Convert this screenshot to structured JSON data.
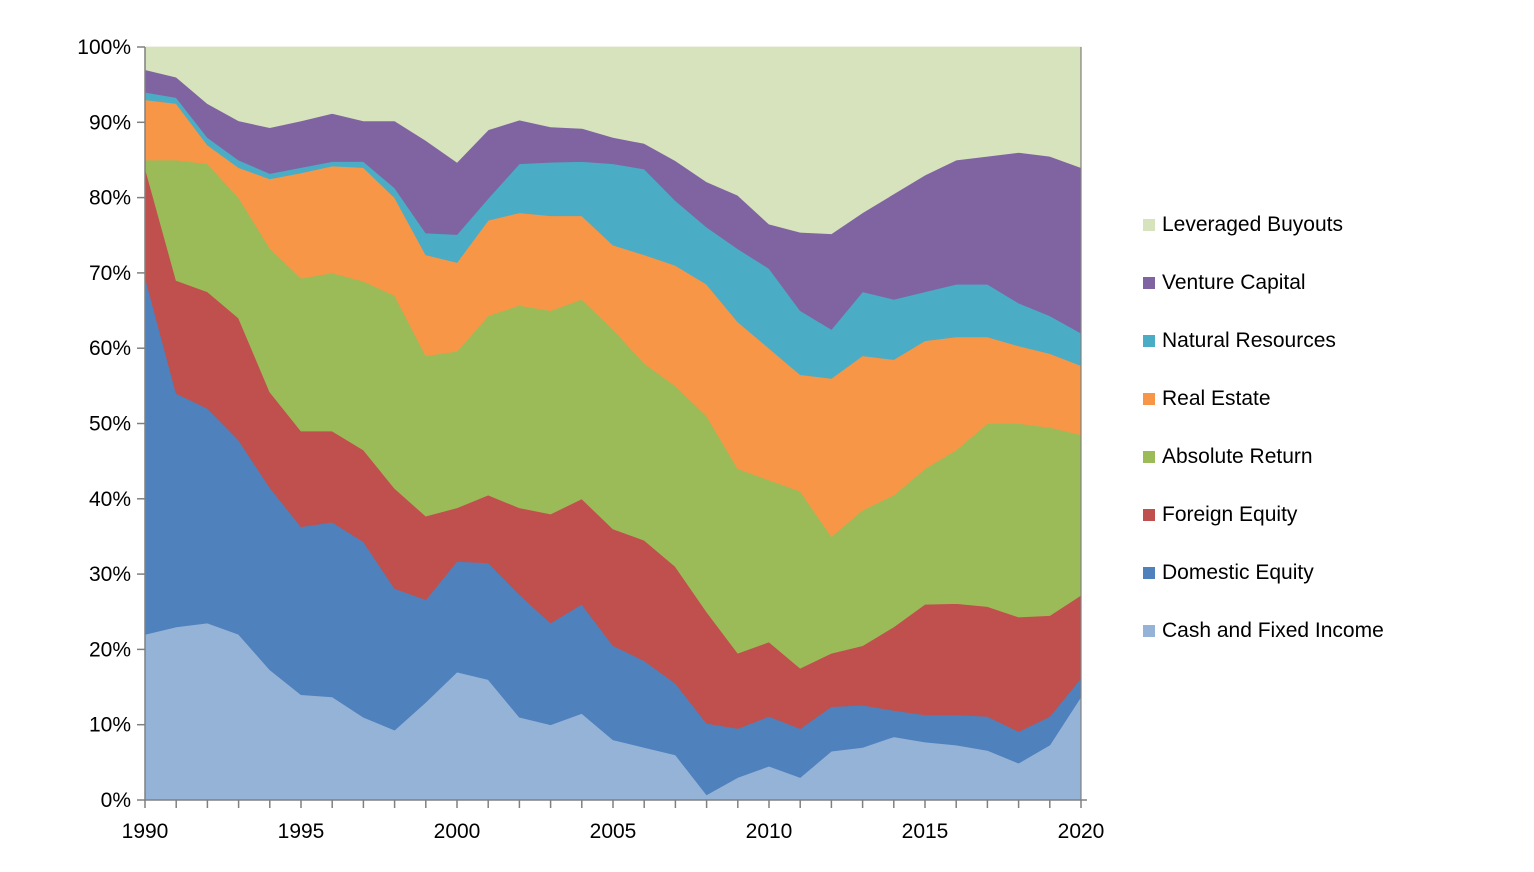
{
  "chart_data": {
    "type": "area",
    "stacked": true,
    "percent_of_total": true,
    "title": "",
    "xlabel": "",
    "ylabel": "",
    "x": [
      1990,
      1991,
      1992,
      1993,
      1994,
      1995,
      1996,
      1997,
      1998,
      1999,
      2000,
      2001,
      2002,
      2003,
      2004,
      2005,
      2006,
      2007,
      2008,
      2009,
      2010,
      2011,
      2012,
      2013,
      2014,
      2015,
      2016,
      2017,
      2018,
      2019,
      2020
    ],
    "series": [
      {
        "name": "Cash and Fixed Income",
        "color": "#95B3D7",
        "values": [
          22.0,
          23.0,
          23.5,
          22.0,
          17.3,
          14.0,
          13.7,
          11.0,
          9.3,
          13.0,
          17.0,
          16.0,
          11.0,
          10.0,
          11.5,
          8.0,
          7.0,
          6.0,
          0.7,
          3.0,
          4.5,
          3.0,
          6.5,
          7.0,
          8.4,
          7.7,
          7.3,
          6.6,
          4.9,
          7.3,
          13.7
        ]
      },
      {
        "name": "Domestic Equity",
        "color": "#4F81BD",
        "values": [
          47.5,
          31.0,
          28.5,
          25.8,
          24.2,
          22.3,
          23.2,
          23.3,
          18.8,
          13.6,
          14.7,
          15.5,
          16.3,
          13.5,
          14.5,
          12.5,
          11.5,
          9.5,
          9.5,
          6.5,
          6.6,
          6.5,
          5.9,
          5.6,
          3.5,
          3.6,
          4.0,
          4.5,
          4.2,
          3.8,
          2.5
        ]
      },
      {
        "name": "Foreign Equity",
        "color": "#C0504D",
        "values": [
          14.5,
          15.0,
          15.5,
          16.2,
          12.7,
          12.7,
          12.1,
          12.2,
          13.3,
          11.1,
          7.1,
          9.0,
          11.5,
          14.5,
          14.0,
          15.5,
          16.0,
          15.5,
          14.8,
          10.0,
          9.9,
          8.0,
          7.1,
          7.9,
          11.1,
          14.7,
          14.8,
          14.6,
          15.2,
          13.4,
          11.0
        ]
      },
      {
        "name": "Absolute Return",
        "color": "#9BBB59",
        "values": [
          1.0,
          16.0,
          17.0,
          16.0,
          19.1,
          20.3,
          21.0,
          22.4,
          25.6,
          21.3,
          20.8,
          23.8,
          26.9,
          27.0,
          26.5,
          26.5,
          23.5,
          24.0,
          26.0,
          24.5,
          21.5,
          23.5,
          15.5,
          18.0,
          17.5,
          18.0,
          20.4,
          24.3,
          25.7,
          25.0,
          21.3
        ]
      },
      {
        "name": "Real Estate",
        "color": "#F79646",
        "values": [
          8.0,
          7.5,
          2.5,
          4.0,
          9.2,
          14.0,
          14.2,
          15.1,
          13.0,
          13.4,
          11.8,
          12.7,
          12.3,
          12.6,
          11.1,
          11.2,
          14.4,
          16.0,
          17.5,
          19.5,
          17.5,
          15.5,
          21.0,
          20.5,
          18.0,
          17.0,
          15.0,
          11.5,
          10.3,
          9.8,
          9.2
        ]
      },
      {
        "name": "Natural Resources",
        "color": "#4BACC6",
        "values": [
          1.0,
          0.8,
          1.0,
          1.0,
          0.7,
          0.7,
          0.6,
          0.8,
          1.3,
          2.9,
          3.7,
          2.9,
          6.5,
          7.1,
          7.2,
          10.8,
          11.4,
          8.6,
          7.6,
          9.7,
          10.6,
          8.5,
          6.5,
          8.5,
          8.0,
          6.5,
          7.0,
          7.0,
          5.7,
          5.0,
          4.3
        ]
      },
      {
        "name": "Venture Capital",
        "color": "#8064A2",
        "values": [
          3.0,
          2.7,
          4.5,
          5.2,
          6.1,
          6.2,
          6.4,
          5.4,
          8.9,
          12.3,
          9.6,
          9.1,
          5.8,
          4.7,
          4.4,
          3.5,
          3.4,
          5.3,
          6.0,
          7.1,
          5.9,
          10.4,
          12.7,
          10.5,
          14.0,
          15.5,
          16.5,
          17.0,
          20.0,
          21.2,
          22.0
        ]
      },
      {
        "name": "Leveraged Buyouts",
        "color": "#D6E3BC",
        "values": [
          3.0,
          4.0,
          7.5,
          9.8,
          10.7,
          9.8,
          8.8,
          9.8,
          9.8,
          12.4,
          15.3,
          11.0,
          9.7,
          10.6,
          10.8,
          12.0,
          12.8,
          15.1,
          17.9,
          19.7,
          23.5,
          24.6,
          24.8,
          22.0,
          19.5,
          17.0,
          15.0,
          14.5,
          14.0,
          14.5,
          16.0
        ]
      }
    ],
    "legend": {
      "position": "right",
      "entries": [
        "Leveraged Buyouts",
        "Venture Capital",
        "Natural Resources",
        "Real Estate",
        "Absolute Return",
        "Foreign Equity",
        "Domestic Equity",
        "Cash and Fixed Income"
      ]
    },
    "x_axis": {
      "labeled_ticks": [
        "1990",
        "1995",
        "2000",
        "2005",
        "2010",
        "2015",
        "2020"
      ],
      "labeled_tick_years": [
        1990,
        1995,
        2000,
        2005,
        2010,
        2015,
        2020
      ],
      "minor_tick_every_years": 1,
      "range": [
        1990,
        2020
      ]
    },
    "y_axis": {
      "min": 0,
      "max": 100,
      "tick_step": 10,
      "tick_labels": [
        "0%",
        "10%",
        "20%",
        "30%",
        "40%",
        "50%",
        "60%",
        "70%",
        "80%",
        "90%",
        "100%"
      ]
    },
    "grid": false,
    "axis_color": "#808080",
    "text_color": "#000000",
    "background_color": "#FFFFFF"
  }
}
